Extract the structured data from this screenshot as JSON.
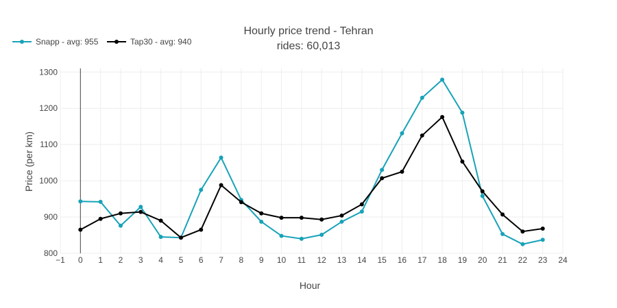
{
  "chart_data": {
    "type": "line",
    "title": "Hourly price trend - Tehran",
    "subtitle": "rides: 60,013",
    "xlabel": "Hour",
    "ylabel": "Price (per km)",
    "x": [
      0,
      1,
      2,
      3,
      4,
      5,
      6,
      7,
      8,
      9,
      10,
      11,
      12,
      13,
      14,
      15,
      16,
      17,
      18,
      19,
      20,
      21,
      22,
      23
    ],
    "xlim": [
      -1,
      24
    ],
    "ylim": [
      800,
      1310
    ],
    "xticks": [
      "−1",
      "0",
      "1",
      "2",
      "3",
      "4",
      "5",
      "6",
      "7",
      "8",
      "9",
      "10",
      "11",
      "12",
      "13",
      "14",
      "15",
      "16",
      "17",
      "18",
      "19",
      "20",
      "21",
      "22",
      "23",
      "24"
    ],
    "yticks": [
      800,
      900,
      1000,
      1100,
      1200,
      1300
    ],
    "yticklabels": [
      "800",
      "900",
      "1000",
      "1100",
      "1200",
      "1300"
    ],
    "grid": true,
    "legend_position": "top-left",
    "series": [
      {
        "name": "Snapp - avg: 955",
        "color": "#17a2b8",
        "values": [
          943,
          942,
          876,
          928,
          845,
          843,
          975,
          1064,
          947,
          887,
          848,
          840,
          851,
          887,
          915,
          1030,
          1131,
          1229,
          1279,
          1188,
          958,
          853,
          825,
          837
        ]
      },
      {
        "name": "Tap30 - avg: 940",
        "color": "#000000",
        "values": [
          865,
          895,
          910,
          914,
          890,
          843,
          865,
          988,
          941,
          910,
          898,
          898,
          893,
          904,
          935,
          1007,
          1025,
          1125,
          1176,
          1053,
          971,
          907,
          860,
          868
        ]
      }
    ]
  }
}
